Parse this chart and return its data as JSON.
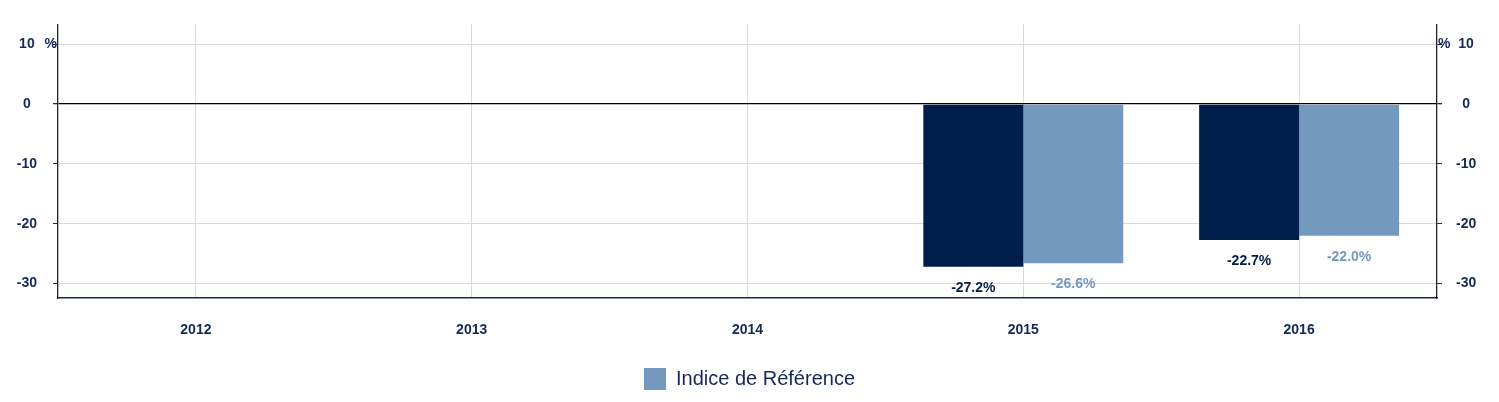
{
  "chart_data": {
    "type": "bar",
    "categories": [
      "2012",
      "2013",
      "2014",
      "2015",
      "2016"
    ],
    "series": [
      {
        "color": "#001e4b",
        "values": [
          null,
          null,
          null,
          -27.2,
          -22.7
        ],
        "value_labels": [
          null,
          null,
          null,
          "-27.2%",
          "-22.7%"
        ]
      },
      {
        "name": "Indice de Référence",
        "color": "#7399be",
        "values": [
          null,
          null,
          null,
          -26.6,
          -22.0
        ],
        "value_labels": [
          null,
          null,
          null,
          "-26.6%",
          "-22.0%"
        ]
      }
    ],
    "ylabel": "%",
    "y2label": "%",
    "ylim": [
      -32.4,
      13.3
    ],
    "yticks": [
      -30,
      -20,
      -10,
      0,
      10
    ],
    "y2lim": [
      -32.4,
      13.3
    ],
    "y2ticks": [
      -30,
      -20,
      -10,
      0,
      10
    ],
    "grid": true,
    "legend": "bottom"
  }
}
